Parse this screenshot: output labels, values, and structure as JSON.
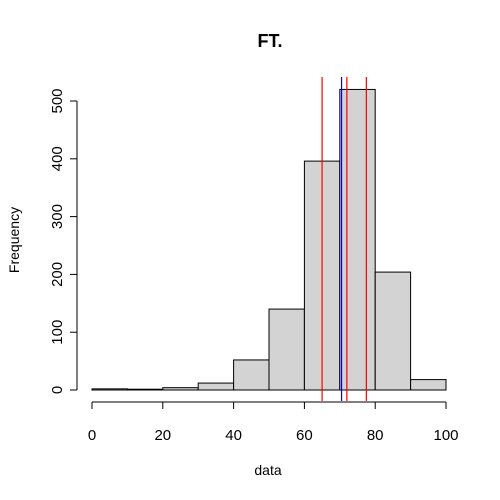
{
  "chart_data": {
    "type": "bar",
    "title": "FT.",
    "xlabel": "data",
    "ylabel": "Frequency",
    "bins": [
      [
        0,
        10
      ],
      [
        10,
        20
      ],
      [
        20,
        30
      ],
      [
        30,
        40
      ],
      [
        40,
        50
      ],
      [
        50,
        60
      ],
      [
        60,
        70
      ],
      [
        70,
        80
      ],
      [
        80,
        90
      ],
      [
        90,
        100
      ]
    ],
    "values": [
      2,
      0,
      4,
      12,
      52,
      140,
      396,
      520,
      204,
      18
    ],
    "xlim": [
      0,
      100
    ],
    "ylim": [
      0,
      520
    ],
    "x_ticks": [
      0,
      20,
      40,
      60,
      80,
      100
    ],
    "y_ticks": [
      0,
      100,
      200,
      300,
      400,
      500
    ],
    "grid": false,
    "vlines": [
      {
        "x": 65,
        "color": "#ff0000"
      },
      {
        "x": 70.5,
        "color": "#0000ff"
      },
      {
        "x": 72,
        "color": "#ff0000"
      },
      {
        "x": 77.5,
        "color": "#ff0000"
      }
    ]
  }
}
